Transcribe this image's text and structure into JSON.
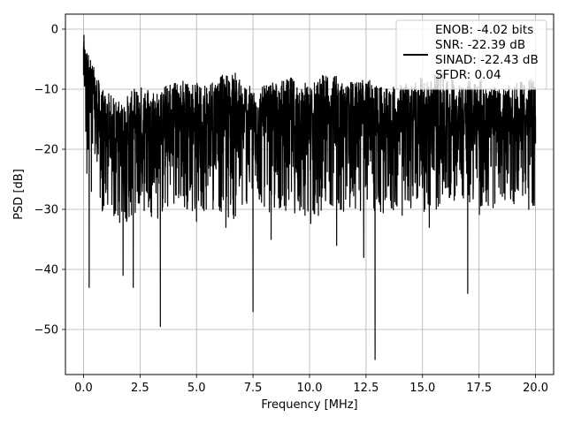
{
  "chart_data": {
    "type": "line",
    "xlabel": "Frequency [MHz]",
    "ylabel": "PSD [dB]",
    "xlim": [
      -0.8,
      20.8
    ],
    "ylim": [
      -57.5,
      2.5
    ],
    "xticks": [
      0.0,
      2.5,
      5.0,
      7.5,
      10.0,
      12.5,
      15.0,
      17.5,
      20.0
    ],
    "xtick_labels": [
      "0.0",
      "2.5",
      "5.0",
      "7.5",
      "10.0",
      "12.5",
      "15.0",
      "17.5",
      "20.0"
    ],
    "yticks": [
      0,
      -10,
      -20,
      -30,
      -40,
      -50
    ],
    "ytick_labels": [
      "0",
      "−10",
      "−20",
      "−30",
      "−40",
      "−50"
    ],
    "grid": true,
    "legend_position": "top-right",
    "legend": [
      "ENOB: -4.02 bits",
      "SNR: -22.39 dB",
      "SINAD: -22.43 dB",
      "SFDR: 0.04"
    ],
    "series": [
      {
        "color": "#000000",
        "x": [
          0.0,
          0.02,
          0.05,
          0.1,
          0.15,
          0.2,
          0.25,
          0.3,
          0.35,
          0.4,
          0.5,
          0.6,
          0.7,
          0.85,
          1.0,
          1.2,
          1.4,
          1.6,
          1.75,
          1.9,
          2.1,
          2.2,
          2.4,
          2.6,
          2.8,
          3.0,
          3.2,
          3.4,
          3.6,
          3.8,
          4.0,
          4.2,
          4.5,
          4.8,
          5.0,
          5.2,
          5.5,
          5.8,
          6.0,
          6.3,
          6.6,
          6.9,
          7.2,
          7.5,
          7.7,
          8.0,
          8.3,
          8.6,
          8.9,
          9.2,
          9.5,
          9.8,
          10.0,
          10.3,
          10.6,
          10.9,
          11.2,
          11.5,
          11.8,
          12.1,
          12.4,
          12.7,
          12.9,
          13.2,
          13.5,
          13.8,
          14.1,
          14.4,
          14.7,
          15.0,
          15.3,
          15.6,
          15.9,
          16.2,
          16.5,
          16.8,
          17.0,
          17.3,
          17.6,
          17.9,
          18.2,
          18.5,
          18.8,
          19.1,
          19.4,
          19.7,
          20.0
        ],
        "y": [
          -3,
          -1,
          -8,
          -17,
          -24,
          -20,
          -43,
          -12,
          -27,
          -19,
          -15,
          -22,
          -17,
          -30,
          -16,
          -21,
          -26,
          -14,
          -41,
          -19,
          -24,
          -43,
          -14,
          -27,
          -20,
          -17,
          -25,
          -49.5,
          -18,
          -22,
          -29,
          -16,
          -24,
          -20,
          -32,
          -17,
          -26,
          -21,
          -19,
          -33,
          -22,
          -18,
          -28,
          -47,
          -20,
          -24,
          -35,
          -18,
          -22,
          -27,
          -17,
          -31,
          -19,
          -25,
          -22,
          -18,
          -36,
          -21,
          -27,
          -19,
          -38,
          -22,
          -55,
          -20,
          -26,
          -18,
          -31,
          -21,
          -24,
          -19,
          -33,
          -17,
          -25,
          -28,
          -20,
          -23,
          -44,
          -19,
          -26,
          -21,
          -29,
          -18,
          -24,
          -27,
          -20,
          -30,
          -19
        ],
        "envelope_upper": [
          -2,
          -10,
          -12,
          -9,
          -10,
          -8,
          -9,
          -8,
          -7,
          -10,
          -9,
          -8,
          -9,
          -7,
          -9,
          -8,
          -10,
          -9,
          -8,
          -7,
          -9,
          -8,
          -10,
          -9,
          -8
        ],
        "envelope_lower": [
          -10,
          -31,
          -33,
          -30,
          -32,
          -29,
          -31,
          -30,
          -32,
          -28,
          -31,
          -30,
          -33,
          -29,
          -31,
          -30,
          -32,
          -29,
          -31,
          -30,
          -28,
          -31,
          -30,
          -29,
          -30
        ]
      }
    ]
  }
}
